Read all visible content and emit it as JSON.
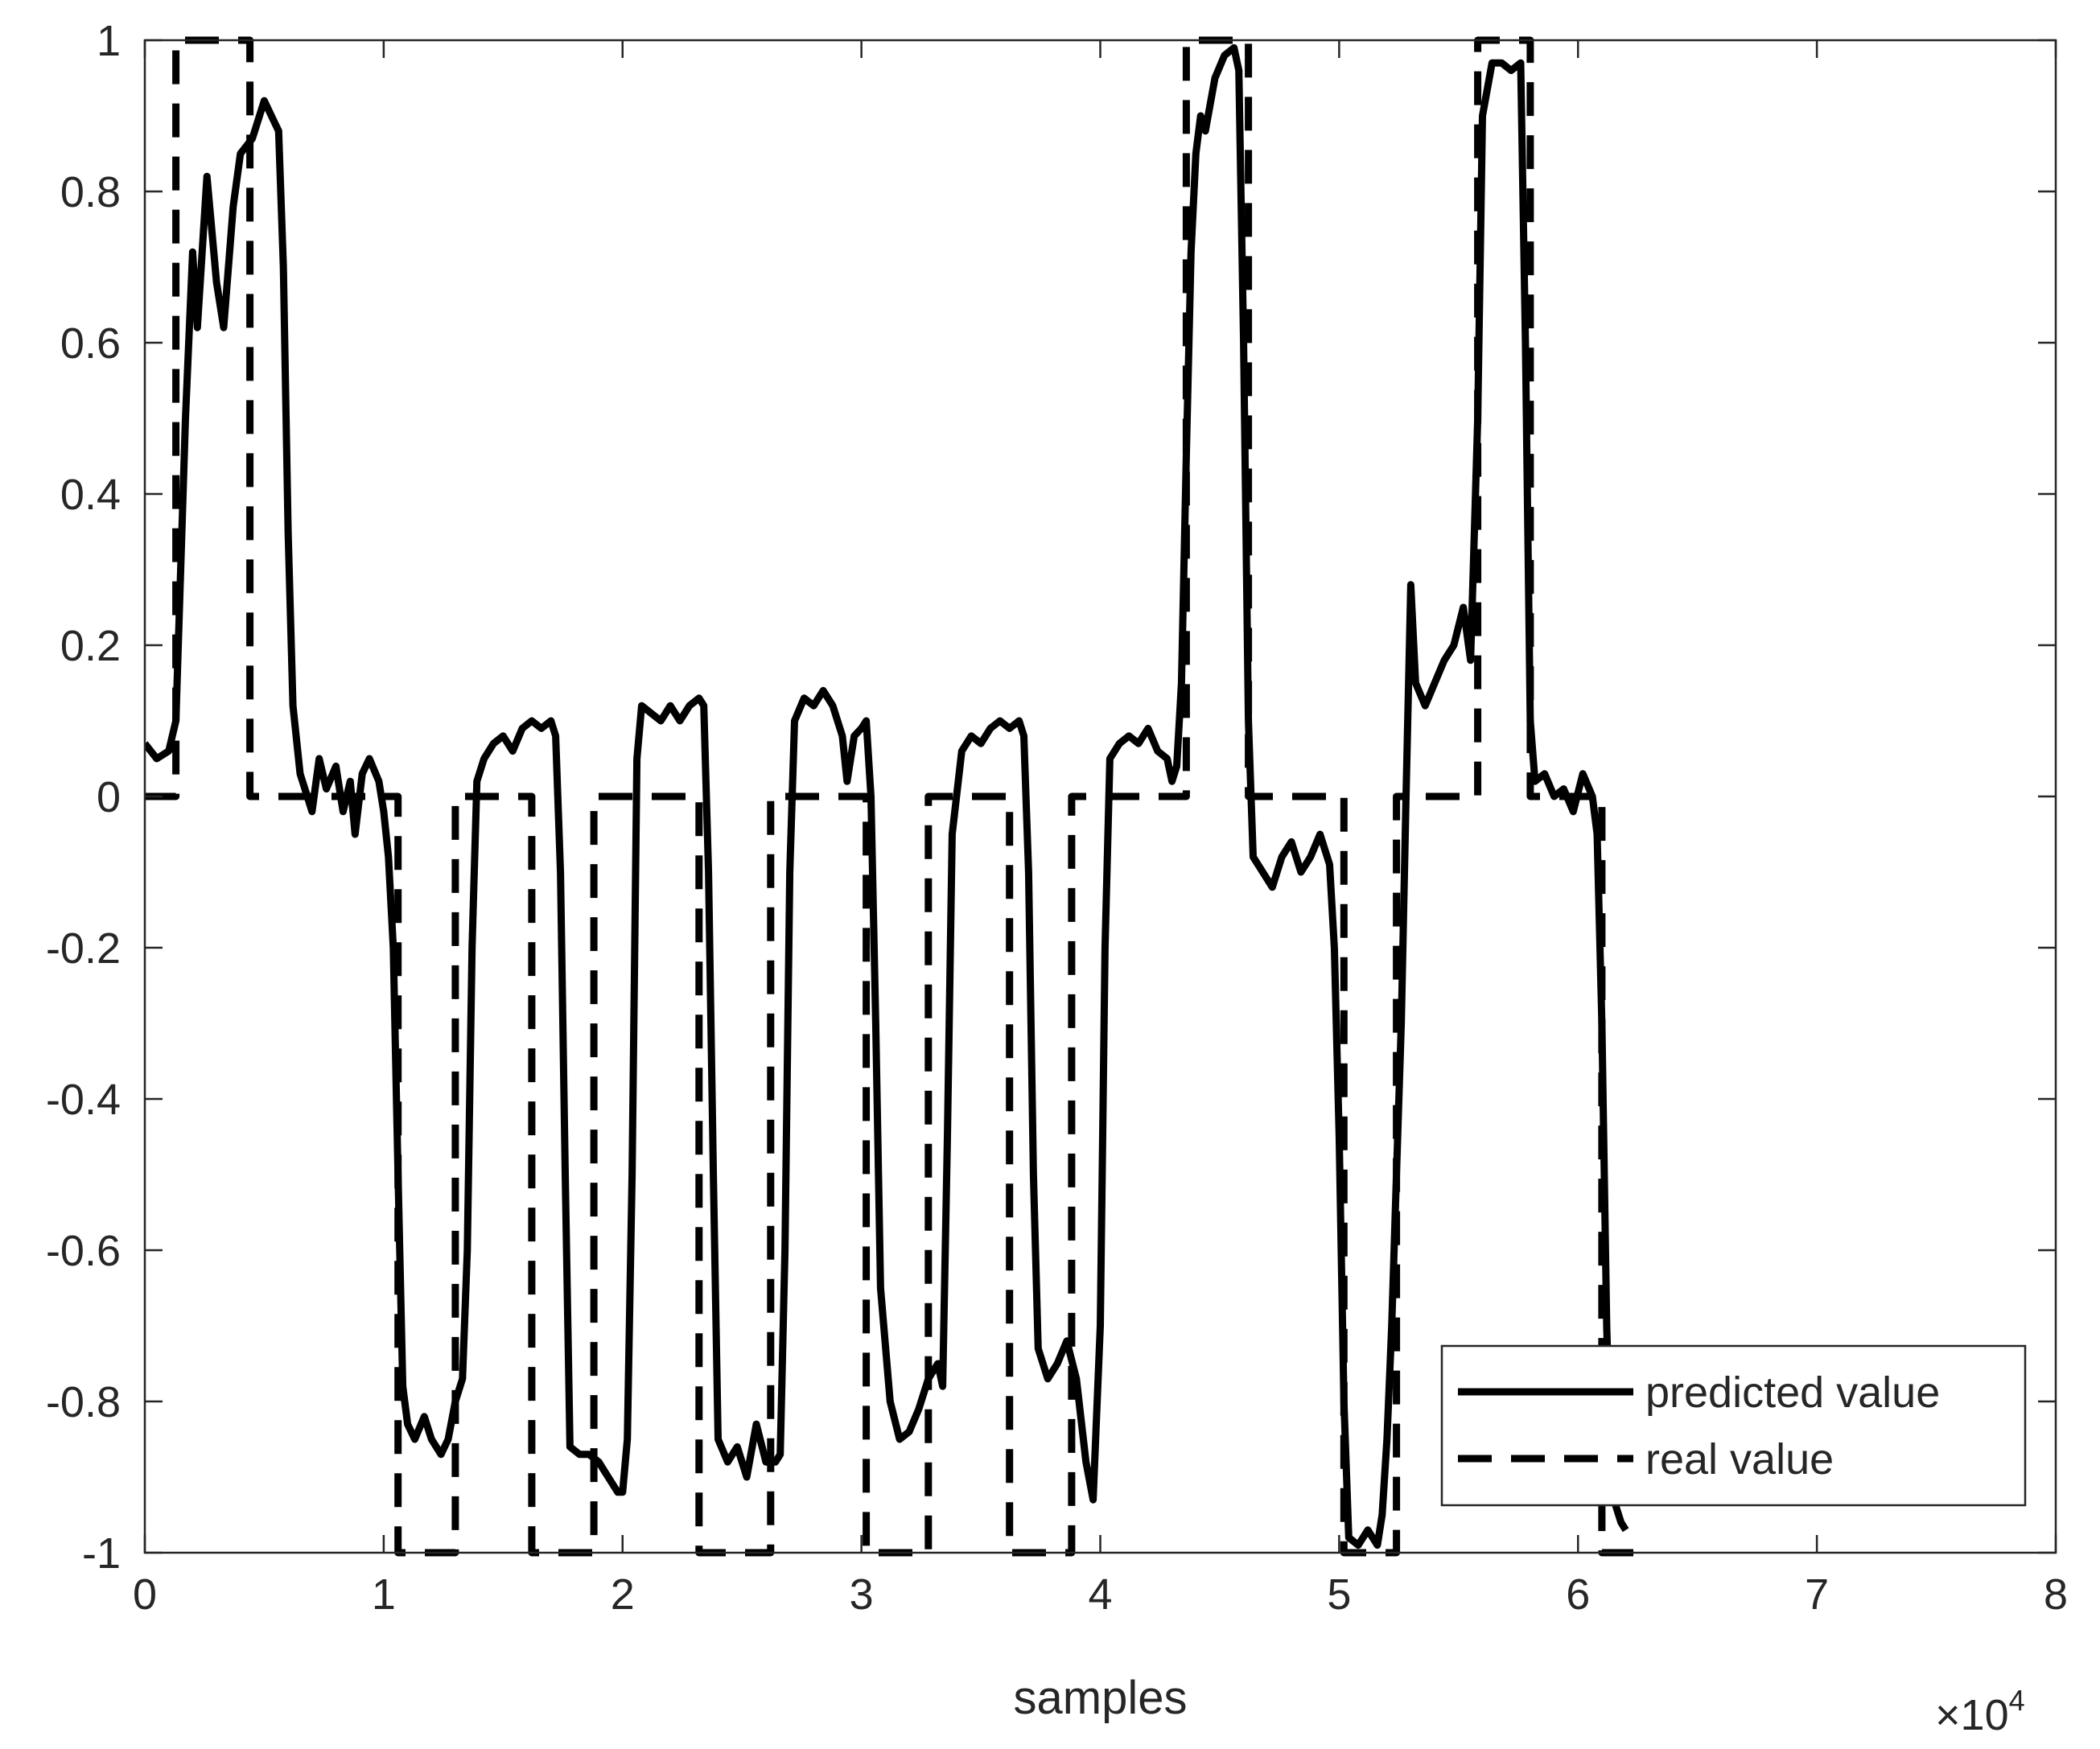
{
  "chart_data": {
    "type": "line",
    "title": "",
    "xlabel": "samples",
    "ylabel": "",
    "x_multiplier_label": "×10",
    "x_multiplier_exponent": "4",
    "xlim": [
      0,
      8
    ],
    "ylim": [
      -1,
      1
    ],
    "xticks": [
      0,
      1,
      2,
      3,
      4,
      5,
      6,
      7,
      8
    ],
    "yticks": [
      -1,
      -0.8,
      -0.6,
      -0.4,
      -0.2,
      0,
      0.2,
      0.4,
      0.6,
      0.8,
      1
    ],
    "grid": false,
    "legend_position": "bottom-right",
    "series": [
      {
        "name": "predicted value",
        "style": "solid",
        "color": "#000000",
        "points": [
          [
            0,
            0.07
          ],
          [
            0.05,
            0.05
          ],
          [
            0.1,
            0.06
          ],
          [
            0.13,
            0.1
          ],
          [
            0.17,
            0.5
          ],
          [
            0.2,
            0.72
          ],
          [
            0.22,
            0.62
          ],
          [
            0.26,
            0.82
          ],
          [
            0.3,
            0.68
          ],
          [
            0.33,
            0.62
          ],
          [
            0.37,
            0.78
          ],
          [
            0.4,
            0.85
          ],
          [
            0.45,
            0.87
          ],
          [
            0.48,
            0.9
          ],
          [
            0.5,
            0.92
          ],
          [
            0.53,
            0.9
          ],
          [
            0.56,
            0.88
          ],
          [
            0.58,
            0.7
          ],
          [
            0.6,
            0.35
          ],
          [
            0.62,
            0.12
          ],
          [
            0.65,
            0.03
          ],
          [
            0.68,
            0.0
          ],
          [
            0.7,
            -0.02
          ],
          [
            0.73,
            0.05
          ],
          [
            0.76,
            0.01
          ],
          [
            0.8,
            0.04
          ],
          [
            0.83,
            -0.02
          ],
          [
            0.86,
            0.02
          ],
          [
            0.88,
            -0.05
          ],
          [
            0.91,
            0.03
          ],
          [
            0.94,
            0.05
          ],
          [
            0.98,
            0.02
          ],
          [
            1.0,
            -0.02
          ],
          [
            1.02,
            -0.08
          ],
          [
            1.04,
            -0.2
          ],
          [
            1.06,
            -0.5
          ],
          [
            1.08,
            -0.78
          ],
          [
            1.1,
            -0.83
          ],
          [
            1.13,
            -0.85
          ],
          [
            1.17,
            -0.82
          ],
          [
            1.2,
            -0.85
          ],
          [
            1.24,
            -0.87
          ],
          [
            1.27,
            -0.85
          ],
          [
            1.3,
            -0.8
          ],
          [
            1.33,
            -0.77
          ],
          [
            1.35,
            -0.6
          ],
          [
            1.37,
            -0.2
          ],
          [
            1.39,
            0.02
          ],
          [
            1.42,
            0.05
          ],
          [
            1.46,
            0.07
          ],
          [
            1.5,
            0.08
          ],
          [
            1.54,
            0.06
          ],
          [
            1.58,
            0.09
          ],
          [
            1.62,
            0.1
          ],
          [
            1.66,
            0.09
          ],
          [
            1.7,
            0.1
          ],
          [
            1.72,
            0.08
          ],
          [
            1.74,
            -0.1
          ],
          [
            1.76,
            -0.5
          ],
          [
            1.78,
            -0.86
          ],
          [
            1.82,
            -0.87
          ],
          [
            1.86,
            -0.87
          ],
          [
            1.9,
            -0.88
          ],
          [
            1.94,
            -0.9
          ],
          [
            1.98,
            -0.92
          ],
          [
            2.0,
            -0.92
          ],
          [
            2.02,
            -0.85
          ],
          [
            2.04,
            -0.5
          ],
          [
            2.06,
            0.05
          ],
          [
            2.08,
            0.12
          ],
          [
            2.12,
            0.11
          ],
          [
            2.16,
            0.1
          ],
          [
            2.2,
            0.12
          ],
          [
            2.24,
            0.1
          ],
          [
            2.28,
            0.12
          ],
          [
            2.32,
            0.13
          ],
          [
            2.34,
            0.12
          ],
          [
            2.36,
            -0.1
          ],
          [
            2.38,
            -0.5
          ],
          [
            2.4,
            -0.85
          ],
          [
            2.44,
            -0.88
          ],
          [
            2.48,
            -0.86
          ],
          [
            2.52,
            -0.9
          ],
          [
            2.56,
            -0.83
          ],
          [
            2.6,
            -0.88
          ],
          [
            2.64,
            -0.88
          ],
          [
            2.66,
            -0.87
          ],
          [
            2.68,
            -0.6
          ],
          [
            2.7,
            -0.1
          ],
          [
            2.72,
            0.1
          ],
          [
            2.76,
            0.13
          ],
          [
            2.8,
            0.12
          ],
          [
            2.84,
            0.14
          ],
          [
            2.88,
            0.12
          ],
          [
            2.92,
            0.08
          ],
          [
            2.94,
            0.02
          ],
          [
            2.97,
            0.08
          ],
          [
            3.0,
            0.09
          ],
          [
            3.02,
            0.1
          ],
          [
            3.04,
            0.0
          ],
          [
            3.06,
            -0.3
          ],
          [
            3.08,
            -0.65
          ],
          [
            3.12,
            -0.8
          ],
          [
            3.16,
            -0.85
          ],
          [
            3.2,
            -0.84
          ],
          [
            3.24,
            -0.81
          ],
          [
            3.28,
            -0.77
          ],
          [
            3.32,
            -0.75
          ],
          [
            3.34,
            -0.78
          ],
          [
            3.36,
            -0.45
          ],
          [
            3.38,
            -0.05
          ],
          [
            3.42,
            0.06
          ],
          [
            3.46,
            0.08
          ],
          [
            3.5,
            0.07
          ],
          [
            3.54,
            0.09
          ],
          [
            3.58,
            0.1
          ],
          [
            3.62,
            0.09
          ],
          [
            3.66,
            0.1
          ],
          [
            3.68,
            0.08
          ],
          [
            3.7,
            -0.1
          ],
          [
            3.72,
            -0.5
          ],
          [
            3.74,
            -0.73
          ],
          [
            3.78,
            -0.77
          ],
          [
            3.82,
            -0.75
          ],
          [
            3.86,
            -0.72
          ],
          [
            3.9,
            -0.77
          ],
          [
            3.94,
            -0.88
          ],
          [
            3.97,
            -0.93
          ],
          [
            4.0,
            -0.7
          ],
          [
            4.02,
            -0.2
          ],
          [
            4.04,
            0.05
          ],
          [
            4.08,
            0.07
          ],
          [
            4.12,
            0.08
          ],
          [
            4.16,
            0.07
          ],
          [
            4.2,
            0.09
          ],
          [
            4.24,
            0.06
          ],
          [
            4.28,
            0.05
          ],
          [
            4.3,
            0.02
          ],
          [
            4.32,
            0.04
          ],
          [
            4.34,
            0.15
          ],
          [
            4.36,
            0.45
          ],
          [
            4.38,
            0.72
          ],
          [
            4.4,
            0.85
          ],
          [
            4.42,
            0.9
          ],
          [
            4.44,
            0.88
          ],
          [
            4.48,
            0.95
          ],
          [
            4.52,
            0.98
          ],
          [
            4.56,
            0.99
          ],
          [
            4.58,
            0.96
          ],
          [
            4.6,
            0.6
          ],
          [
            4.62,
            0.1
          ],
          [
            4.64,
            -0.08
          ],
          [
            4.68,
            -0.1
          ],
          [
            4.72,
            -0.12
          ],
          [
            4.76,
            -0.08
          ],
          [
            4.8,
            -0.06
          ],
          [
            4.84,
            -0.1
          ],
          [
            4.88,
            -0.08
          ],
          [
            4.92,
            -0.05
          ],
          [
            4.96,
            -0.09
          ],
          [
            4.98,
            -0.2
          ],
          [
            5.0,
            -0.45
          ],
          [
            5.02,
            -0.8
          ],
          [
            5.04,
            -0.98
          ],
          [
            5.08,
            -0.99
          ],
          [
            5.12,
            -0.97
          ],
          [
            5.16,
            -0.99
          ],
          [
            5.18,
            -0.95
          ],
          [
            5.2,
            -0.85
          ],
          [
            5.22,
            -0.7
          ],
          [
            5.24,
            -0.5
          ],
          [
            5.26,
            -0.3
          ],
          [
            5.28,
            0.0
          ],
          [
            5.3,
            0.28
          ],
          [
            5.32,
            0.15
          ],
          [
            5.36,
            0.12
          ],
          [
            5.4,
            0.15
          ],
          [
            5.44,
            0.18
          ],
          [
            5.48,
            0.2
          ],
          [
            5.52,
            0.25
          ],
          [
            5.55,
            0.18
          ],
          [
            5.58,
            0.5
          ],
          [
            5.6,
            0.9
          ],
          [
            5.64,
            0.97
          ],
          [
            5.68,
            0.97
          ],
          [
            5.72,
            0.96
          ],
          [
            5.76,
            0.97
          ],
          [
            5.78,
            0.6
          ],
          [
            5.8,
            0.1
          ],
          [
            5.82,
            0.02
          ],
          [
            5.86,
            0.03
          ],
          [
            5.9,
            0.0
          ],
          [
            5.94,
            0.01
          ],
          [
            5.98,
            -0.02
          ],
          [
            6.02,
            0.03
          ],
          [
            6.06,
            0.0
          ],
          [
            6.08,
            -0.05
          ],
          [
            6.1,
            -0.3
          ],
          [
            6.12,
            -0.7
          ],
          [
            6.14,
            -0.92
          ],
          [
            6.18,
            -0.96
          ],
          [
            6.2,
            -0.97
          ]
        ]
      },
      {
        "name": "real value",
        "style": "dashed",
        "color": "#000000",
        "points": [
          [
            0,
            0
          ],
          [
            0.13,
            0
          ],
          [
            0.13,
            1
          ],
          [
            0.44,
            1
          ],
          [
            0.44,
            0
          ],
          [
            1.06,
            0
          ],
          [
            1.06,
            -1
          ],
          [
            1.3,
            -1
          ],
          [
            1.3,
            0
          ],
          [
            1.62,
            0
          ],
          [
            1.62,
            -1
          ],
          [
            1.88,
            -1
          ],
          [
            1.88,
            0
          ],
          [
            2.32,
            0
          ],
          [
            2.32,
            -1
          ],
          [
            2.62,
            -1
          ],
          [
            2.62,
            0
          ],
          [
            3.02,
            0
          ],
          [
            3.02,
            -1
          ],
          [
            3.28,
            -1
          ],
          [
            3.28,
            0
          ],
          [
            3.62,
            0
          ],
          [
            3.62,
            -1
          ],
          [
            3.88,
            -1
          ],
          [
            3.88,
            0
          ],
          [
            4.36,
            0
          ],
          [
            4.36,
            1
          ],
          [
            4.62,
            1
          ],
          [
            4.62,
            0
          ],
          [
            5.02,
            0
          ],
          [
            5.02,
            -1
          ],
          [
            5.24,
            -1
          ],
          [
            5.24,
            0
          ],
          [
            5.58,
            0
          ],
          [
            5.58,
            1
          ],
          [
            5.8,
            1
          ],
          [
            5.8,
            0
          ],
          [
            6.1,
            0
          ],
          [
            6.1,
            -1
          ],
          [
            6.25,
            -1
          ]
        ]
      }
    ]
  }
}
